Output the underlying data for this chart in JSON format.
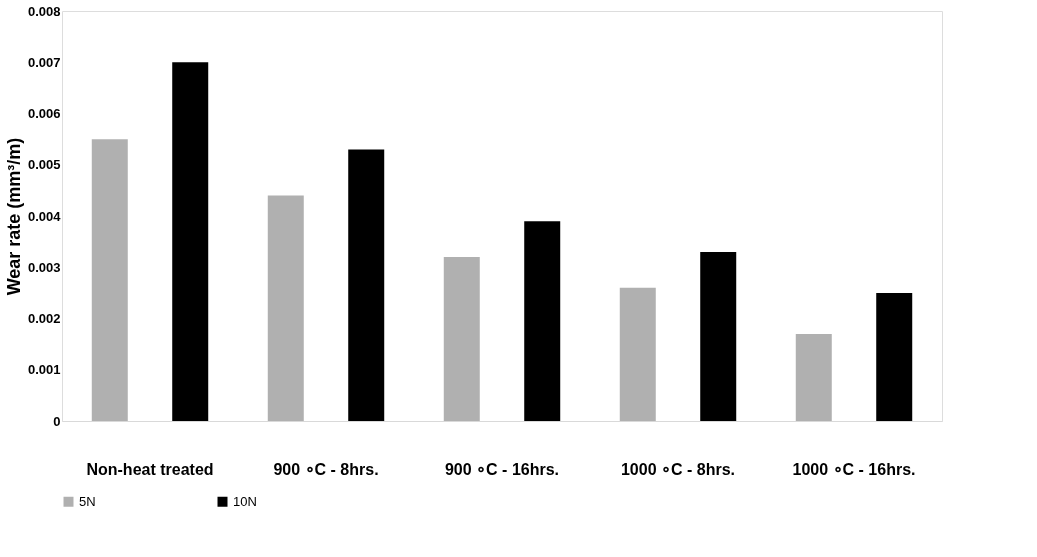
{
  "chart_data": {
    "type": "bar",
    "ylabel": "Wear rate (mm³/m)",
    "categories": [
      "Non-heat treated",
      "900 ∘C - 8hrs.",
      "900 ∘C - 16hrs.",
      "1000 ∘C - 8hrs.",
      "1000 ∘C - 16hrs."
    ],
    "series": [
      {
        "name": "5N",
        "color": "#b0b0b0",
        "values": [
          0.0055,
          0.0044,
          0.0032,
          0.0026,
          0.0017
        ]
      },
      {
        "name": "10N",
        "color": "#000000",
        "values": [
          0.007,
          0.0053,
          0.0039,
          0.0033,
          0.0025
        ]
      }
    ],
    "ylim": [
      0,
      0.008
    ],
    "yticks": [
      0,
      0.001,
      0.002,
      0.003,
      0.004,
      0.005,
      0.006,
      0.007,
      0.008
    ],
    "grid": false,
    "legend": "bottom"
  }
}
